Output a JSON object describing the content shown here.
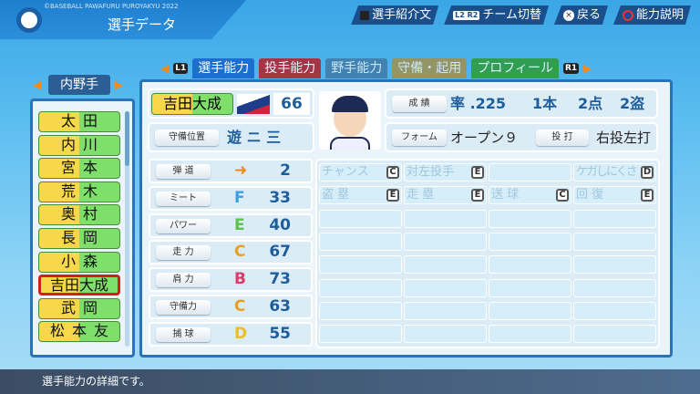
{
  "header": {
    "copyright": "©BASEBALL PAWAFURU PUROYAKYU 2022",
    "title": "選手データ"
  },
  "buttons": [
    {
      "key": "square",
      "label": "選手紹介文"
    },
    {
      "key": "L2 R2",
      "label": "チーム切替"
    },
    {
      "key": "×",
      "label": "戻る"
    },
    {
      "key": "circle",
      "label": "能力説明"
    }
  ],
  "tabs": {
    "left_key": "L1",
    "right_key": "R1",
    "items": [
      {
        "label": "選手能力",
        "color": "#1d6fcf",
        "active": true
      },
      {
        "label": "投手能力",
        "color": "#b3202b"
      },
      {
        "label": "野手能力",
        "color": "#3f6e98"
      },
      {
        "label": "守備・起用",
        "color": "#b3872d"
      },
      {
        "label": "プロフィール",
        "color": "#2a9a2a"
      }
    ]
  },
  "position_selector": "内野手",
  "players": [
    {
      "name": "太田"
    },
    {
      "name": "内川"
    },
    {
      "name": "宮本"
    },
    {
      "name": "荒木"
    },
    {
      "name": "奥村"
    },
    {
      "name": "長岡"
    },
    {
      "name": "小森"
    },
    {
      "name": "吉田大成",
      "selected": true
    },
    {
      "name": "武岡"
    },
    {
      "name": "松本友"
    }
  ],
  "player": {
    "name": "吉田大成",
    "team_logo": "Swallows",
    "number": "66",
    "fielding_label": "守備位置",
    "fielding": "遊 ニ 三",
    "record_label": "成 績",
    "avg": "率 .225",
    "hr": "1本",
    "rbi": "2点",
    "sb": "2盗",
    "form_label": "フォーム",
    "form": "オープン９",
    "throwbat_label": "投 打",
    "throwbat": "右投左打"
  },
  "stats": [
    {
      "label": "弾 道",
      "grade": "arrow",
      "value": "2"
    },
    {
      "label": "ミート",
      "grade": "F",
      "value": "33",
      "color": "#3aa0e0"
    },
    {
      "label": "パワー",
      "grade": "E",
      "value": "40",
      "color": "#5bc24a"
    },
    {
      "label": "走 力",
      "grade": "C",
      "value": "67",
      "color": "#e8a020"
    },
    {
      "label": "肩 力",
      "grade": "B",
      "value": "73",
      "color": "#e03a6a"
    },
    {
      "label": "守備力",
      "grade": "C",
      "value": "63",
      "color": "#e8a020"
    },
    {
      "label": "捕 球",
      "grade": "D",
      "value": "55",
      "color": "#e8c020"
    }
  ],
  "abilities": [
    {
      "name": "チャンス",
      "grade": "C"
    },
    {
      "name": "対左投手",
      "grade": "E"
    },
    {
      "name": "",
      "grade": ""
    },
    {
      "name": "ケガしにくさ",
      "grade": "D"
    },
    {
      "name": "盗 塁",
      "grade": "E"
    },
    {
      "name": "走 塁",
      "grade": "E"
    },
    {
      "name": "送 球",
      "grade": "C"
    },
    {
      "name": "回 復",
      "grade": "E"
    }
  ],
  "status_text": "選手能力の詳細です。"
}
